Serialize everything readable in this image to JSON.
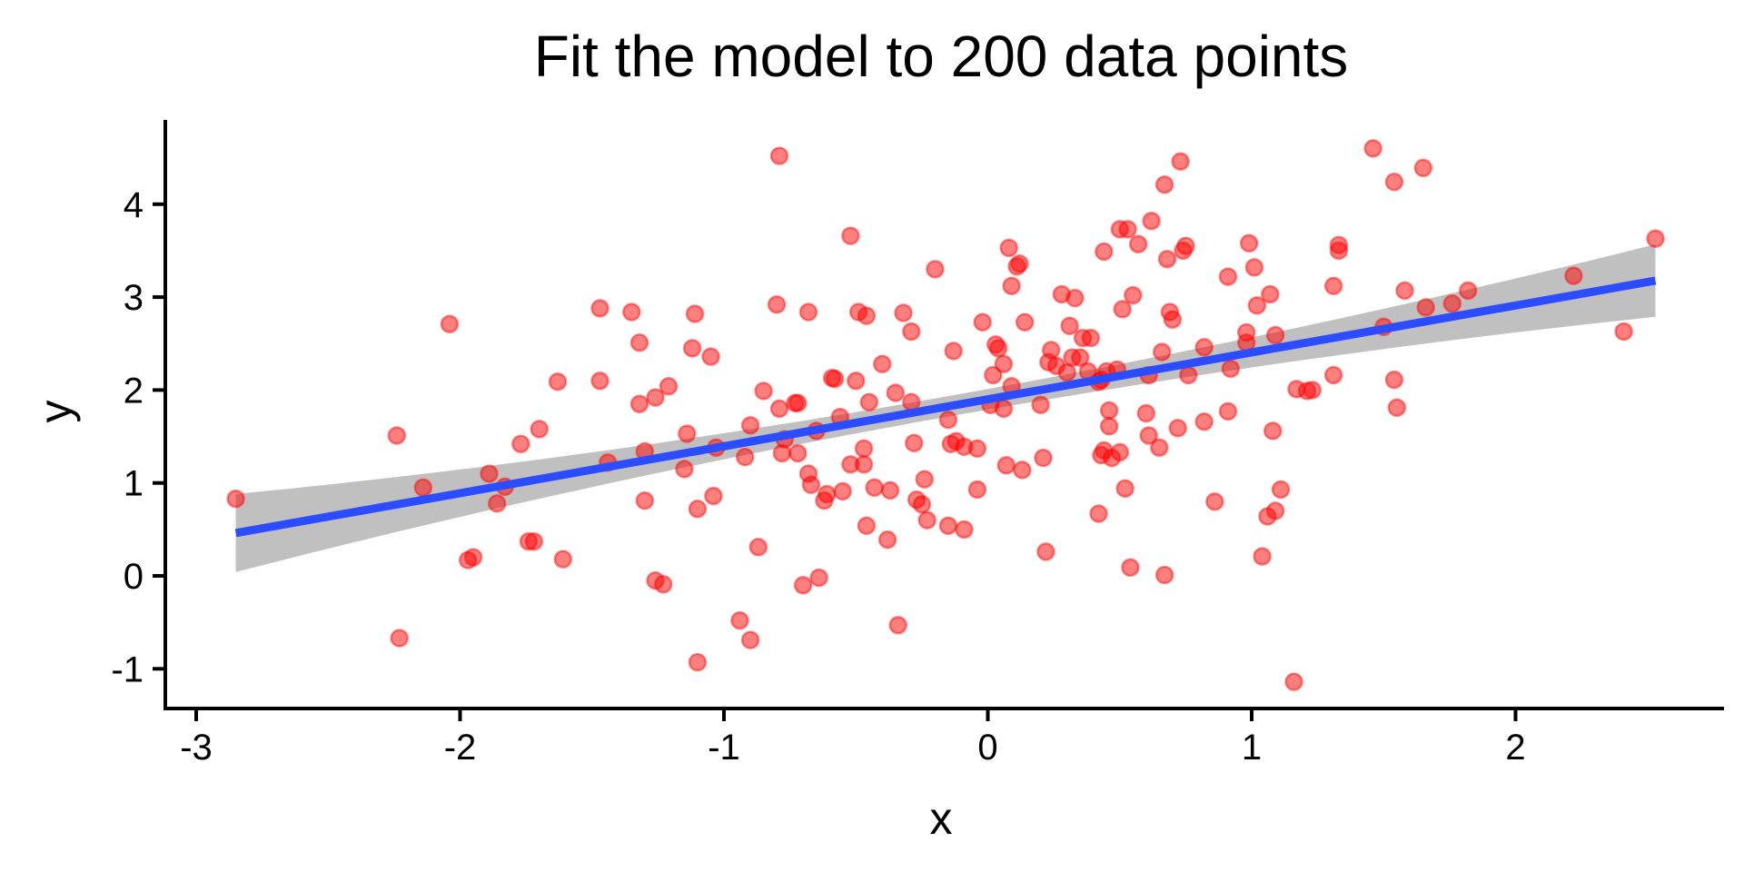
{
  "chart_data": {
    "type": "scatter",
    "title": "Fit the model to 200 data points",
    "xlabel": "x",
    "ylabel": "y",
    "xlim": [
      -3.1,
      2.8
    ],
    "ylim": [
      -1.4,
      4.9
    ],
    "xticks": [
      -3,
      -2,
      -1,
      0,
      1,
      2
    ],
    "yticks": [
      -1,
      0,
      1,
      2,
      3,
      4
    ],
    "grid": false,
    "legend": "none",
    "colors": {
      "points": "#ff0000",
      "fit_line": "#2c4cff",
      "band": "#bdbdbd",
      "axis": "#000000"
    },
    "fit": {
      "slope": 0.505,
      "intercept": 1.9,
      "x_range": [
        -2.85,
        2.53
      ],
      "ci_halfwidth_left": 0.42,
      "ci_halfwidth_right": 0.39,
      "ci_halfwidth_center": 0.11
    },
    "series": [
      {
        "points": [
          [
            -2.85,
            0.83
          ],
          [
            -2.24,
            1.51
          ],
          [
            -2.23,
            -0.67
          ],
          [
            -2.14,
            0.95
          ],
          [
            -2.04,
            2.71
          ],
          [
            -1.97,
            0.17
          ],
          [
            -1.95,
            0.2
          ],
          [
            -1.89,
            1.1
          ],
          [
            -1.86,
            0.78
          ],
          [
            -1.83,
            0.96
          ],
          [
            -1.77,
            1.42
          ],
          [
            -1.74,
            0.37
          ],
          [
            -1.72,
            0.37
          ],
          [
            -1.7,
            1.58
          ],
          [
            -1.63,
            2.09
          ],
          [
            -1.61,
            0.18
          ],
          [
            -1.47,
            2.88
          ],
          [
            -1.47,
            2.1
          ],
          [
            -1.44,
            1.22
          ],
          [
            -1.35,
            2.84
          ],
          [
            -1.32,
            1.85
          ],
          [
            -1.32,
            2.51
          ],
          [
            -1.3,
            1.34
          ],
          [
            -1.3,
            0.81
          ],
          [
            -1.26,
            1.92
          ],
          [
            -1.26,
            -0.05
          ],
          [
            -1.23,
            -0.09
          ],
          [
            -1.21,
            2.04
          ],
          [
            -1.15,
            1.15
          ],
          [
            -1.14,
            1.53
          ],
          [
            -1.12,
            2.45
          ],
          [
            -1.11,
            2.82
          ],
          [
            -1.1,
            0.72
          ],
          [
            -1.1,
            -0.93
          ],
          [
            -1.05,
            2.36
          ],
          [
            -1.04,
            0.86
          ],
          [
            -1.03,
            1.38
          ],
          [
            -0.94,
            -0.48
          ],
          [
            -0.92,
            1.28
          ],
          [
            -0.9,
            1.62
          ],
          [
            -0.9,
            -0.69
          ],
          [
            -0.87,
            0.31
          ],
          [
            -0.85,
            1.99
          ],
          [
            -0.8,
            2.92
          ],
          [
            -0.79,
            4.52
          ],
          [
            -0.79,
            1.8
          ],
          [
            -0.78,
            1.32
          ],
          [
            -0.77,
            1.47
          ],
          [
            -0.73,
            1.86
          ],
          [
            -0.72,
            1.86
          ],
          [
            -0.72,
            1.32
          ],
          [
            -0.7,
            -0.1
          ],
          [
            -0.68,
            2.84
          ],
          [
            -0.68,
            1.1
          ],
          [
            -0.67,
            0.98
          ],
          [
            -0.65,
            1.56
          ],
          [
            -0.64,
            -0.02
          ],
          [
            -0.62,
            0.81
          ],
          [
            -0.61,
            0.88
          ],
          [
            -0.59,
            2.13
          ],
          [
            -0.58,
            2.12
          ],
          [
            -0.56,
            1.71
          ],
          [
            -0.55,
            0.91
          ],
          [
            -0.52,
            3.66
          ],
          [
            -0.52,
            1.2
          ],
          [
            -0.5,
            2.1
          ],
          [
            -0.49,
            2.84
          ],
          [
            -0.47,
            1.37
          ],
          [
            -0.47,
            1.2
          ],
          [
            -0.46,
            2.8
          ],
          [
            -0.46,
            0.54
          ],
          [
            -0.45,
            1.87
          ],
          [
            -0.43,
            0.95
          ],
          [
            -0.4,
            2.28
          ],
          [
            -0.38,
            0.39
          ],
          [
            -0.37,
            0.92
          ],
          [
            -0.35,
            1.97
          ],
          [
            -0.34,
            -0.53
          ],
          [
            -0.32,
            2.83
          ],
          [
            -0.29,
            2.63
          ],
          [
            -0.29,
            1.87
          ],
          [
            -0.28,
            1.43
          ],
          [
            -0.27,
            0.82
          ],
          [
            -0.25,
            0.77
          ],
          [
            -0.24,
            1.04
          ],
          [
            -0.23,
            0.6
          ],
          [
            -0.2,
            3.3
          ],
          [
            -0.15,
            1.68
          ],
          [
            -0.15,
            0.54
          ],
          [
            -0.14,
            1.42
          ],
          [
            -0.13,
            2.42
          ],
          [
            -0.12,
            1.45
          ],
          [
            -0.09,
            0.5
          ],
          [
            -0.09,
            1.39
          ],
          [
            -0.04,
            1.37
          ],
          [
            -0.04,
            0.93
          ],
          [
            -0.02,
            2.73
          ],
          [
            0.01,
            1.84
          ],
          [
            0.02,
            2.16
          ],
          [
            0.03,
            2.49
          ],
          [
            0.04,
            2.45
          ],
          [
            0.06,
            2.28
          ],
          [
            0.06,
            1.8
          ],
          [
            0.07,
            1.19
          ],
          [
            0.08,
            3.53
          ],
          [
            0.09,
            2.04
          ],
          [
            0.09,
            3.12
          ],
          [
            0.11,
            3.33
          ],
          [
            0.12,
            3.36
          ],
          [
            0.13,
            1.14
          ],
          [
            0.14,
            2.73
          ],
          [
            0.2,
            1.84
          ],
          [
            0.21,
            1.27
          ],
          [
            0.22,
            0.26
          ],
          [
            0.23,
            2.3
          ],
          [
            0.24,
            2.43
          ],
          [
            0.26,
            2.26
          ],
          [
            0.28,
            3.03
          ],
          [
            0.3,
            2.19
          ],
          [
            0.31,
            2.69
          ],
          [
            0.32,
            2.35
          ],
          [
            0.33,
            2.99
          ],
          [
            0.35,
            2.35
          ],
          [
            0.36,
            2.56
          ],
          [
            0.38,
            2.2
          ],
          [
            0.39,
            2.56
          ],
          [
            0.42,
            0.67
          ],
          [
            0.42,
            2.09
          ],
          [
            0.43,
            2.11
          ],
          [
            0.43,
            1.3
          ],
          [
            0.44,
            3.49
          ],
          [
            0.44,
            1.35
          ],
          [
            0.45,
            2.2
          ],
          [
            0.46,
            1.61
          ],
          [
            0.46,
            1.78
          ],
          [
            0.47,
            1.27
          ],
          [
            0.49,
            2.22
          ],
          [
            0.5,
            3.73
          ],
          [
            0.5,
            1.33
          ],
          [
            0.51,
            2.87
          ],
          [
            0.52,
            0.94
          ],
          [
            0.53,
            3.73
          ],
          [
            0.54,
            0.09
          ],
          [
            0.55,
            3.02
          ],
          [
            0.57,
            3.57
          ],
          [
            0.6,
            1.75
          ],
          [
            0.61,
            1.51
          ],
          [
            0.61,
            2.16
          ],
          [
            0.62,
            3.82
          ],
          [
            0.65,
            1.38
          ],
          [
            0.66,
            2.41
          ],
          [
            0.67,
            4.21
          ],
          [
            0.67,
            0.01
          ],
          [
            0.68,
            3.41
          ],
          [
            0.69,
            2.84
          ],
          [
            0.7,
            2.76
          ],
          [
            0.72,
            1.59
          ],
          [
            0.73,
            4.46
          ],
          [
            0.74,
            3.5
          ],
          [
            0.75,
            3.55
          ],
          [
            0.76,
            2.16
          ],
          [
            0.82,
            2.46
          ],
          [
            0.82,
            1.66
          ],
          [
            0.86,
            0.8
          ],
          [
            0.91,
            1.77
          ],
          [
            0.91,
            3.22
          ],
          [
            0.92,
            2.23
          ],
          [
            0.98,
            2.51
          ],
          [
            0.98,
            2.62
          ],
          [
            0.99,
            3.58
          ],
          [
            1.01,
            3.32
          ],
          [
            1.02,
            2.91
          ],
          [
            1.04,
            0.21
          ],
          [
            1.06,
            0.64
          ],
          [
            1.07,
            3.03
          ],
          [
            1.08,
            1.56
          ],
          [
            1.09,
            2.59
          ],
          [
            1.09,
            0.7
          ],
          [
            1.11,
            0.93
          ],
          [
            1.16,
            -1.14
          ],
          [
            1.17,
            2.01
          ],
          [
            1.21,
            1.99
          ],
          [
            1.23,
            2.0
          ],
          [
            1.31,
            3.12
          ],
          [
            1.31,
            2.16
          ],
          [
            1.33,
            3.56
          ],
          [
            1.33,
            3.5
          ],
          [
            1.46,
            4.6
          ],
          [
            1.5,
            2.68
          ],
          [
            1.54,
            2.11
          ],
          [
            1.55,
            1.81
          ],
          [
            1.54,
            4.24
          ],
          [
            1.58,
            3.07
          ],
          [
            1.65,
            4.39
          ],
          [
            1.66,
            2.89
          ],
          [
            1.76,
            2.93
          ],
          [
            1.82,
            3.07
          ],
          [
            2.22,
            3.23
          ],
          [
            2.41,
            2.63
          ],
          [
            2.53,
            3.63
          ]
        ]
      }
    ]
  }
}
